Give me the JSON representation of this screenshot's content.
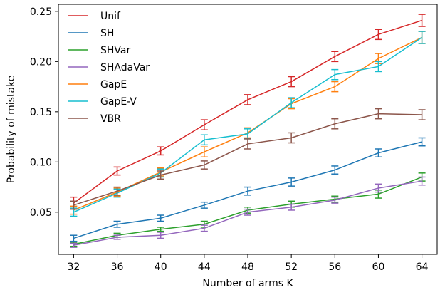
{
  "chart_data": {
    "type": "line",
    "title": "",
    "xlabel": "Number of arms K",
    "ylabel": "Probability of mistake",
    "x": [
      32,
      36,
      40,
      44,
      48,
      52,
      56,
      60,
      64
    ],
    "xticks": [
      "32",
      "36",
      "40",
      "44",
      "48",
      "52",
      "56",
      "60",
      "64"
    ],
    "yticks": [
      "0.05",
      "0.10",
      "0.15",
      "0.20",
      "0.25"
    ],
    "ytick_values": [
      0.05,
      0.1,
      0.15,
      0.2,
      0.25
    ],
    "ylim": [
      0.008,
      0.257
    ],
    "xlim": [
      30.6,
      65.4
    ],
    "grid": false,
    "legend_position": "top-left",
    "error_bars": true,
    "series": [
      {
        "name": "Unif",
        "color": "#d62728",
        "values": [
          0.059,
          0.091,
          0.111,
          0.137,
          0.162,
          0.18,
          0.205,
          0.227,
          0.241
        ],
        "errors": [
          0.006,
          0.004,
          0.004,
          0.005,
          0.005,
          0.005,
          0.005,
          0.005,
          0.006
        ]
      },
      {
        "name": "SH",
        "color": "#1f77b4",
        "values": [
          0.024,
          0.038,
          0.044,
          0.057,
          0.071,
          0.08,
          0.092,
          0.109,
          0.12
        ],
        "errors": [
          0.003,
          0.003,
          0.003,
          0.003,
          0.004,
          0.004,
          0.004,
          0.004,
          0.004
        ]
      },
      {
        "name": "SHVar",
        "color": "#2ca02c",
        "values": [
          0.018,
          0.027,
          0.033,
          0.038,
          0.052,
          0.058,
          0.063,
          0.068,
          0.085
        ],
        "errors": [
          0.002,
          0.002,
          0.002,
          0.003,
          0.003,
          0.003,
          0.003,
          0.004,
          0.004
        ]
      },
      {
        "name": "SHAdaVar",
        "color": "#9467bd",
        "values": [
          0.017,
          0.025,
          0.027,
          0.034,
          0.05,
          0.055,
          0.062,
          0.074,
          0.081
        ],
        "errors": [
          0.002,
          0.002,
          0.003,
          0.003,
          0.003,
          0.003,
          0.003,
          0.004,
          0.004
        ]
      },
      {
        "name": "GapE",
        "color": "#ff7f0e",
        "values": [
          0.052,
          0.07,
          0.09,
          0.11,
          0.129,
          0.158,
          0.175,
          0.203,
          0.224
        ],
        "errors": [
          0.004,
          0.004,
          0.004,
          0.005,
          0.005,
          0.005,
          0.005,
          0.005,
          0.006
        ]
      },
      {
        "name": "GapE-V",
        "color": "#17becf",
        "values": [
          0.05,
          0.069,
          0.089,
          0.122,
          0.128,
          0.159,
          0.187,
          0.195,
          0.224
        ],
        "errors": [
          0.004,
          0.004,
          0.004,
          0.005,
          0.005,
          0.005,
          0.005,
          0.005,
          0.006
        ]
      },
      {
        "name": "VBR",
        "color": "#8c564b",
        "values": [
          0.057,
          0.071,
          0.087,
          0.097,
          0.118,
          0.124,
          0.138,
          0.148,
          0.147
        ],
        "errors": [
          0.004,
          0.004,
          0.004,
          0.004,
          0.005,
          0.005,
          0.005,
          0.005,
          0.005
        ]
      }
    ]
  }
}
